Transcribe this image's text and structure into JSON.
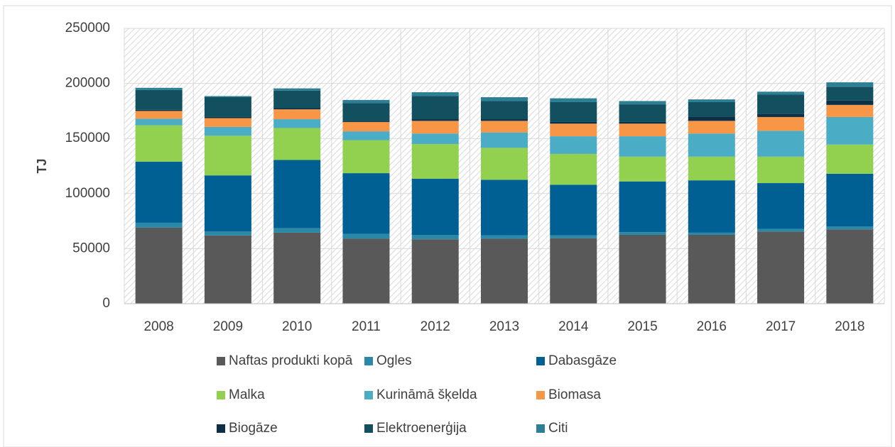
{
  "chart_data": {
    "type": "stacked_bar",
    "ylabel": "TJ",
    "categories": [
      "2008",
      "2009",
      "2010",
      "2011",
      "2012",
      "2013",
      "2014",
      "2015",
      "2016",
      "2017",
      "2018"
    ],
    "ylim": [
      0,
      250000
    ],
    "yticks": [
      0,
      50000,
      100000,
      150000,
      200000,
      250000
    ],
    "grid": true,
    "legend": "bottom",
    "series": [
      {
        "name": "Naftas produkti kopā",
        "color": "#595959",
        "values": [
          69000,
          62000,
          64500,
          59000,
          58500,
          59000,
          59500,
          62500,
          62500,
          65500,
          67500
        ]
      },
      {
        "name": "Ogles",
        "color": "#2b88a6",
        "values": [
          4500,
          3500,
          4000,
          4500,
          4000,
          3000,
          2500,
          2500,
          2000,
          2500,
          2500
        ]
      },
      {
        "name": "Dabasgāze",
        "color": "#005f93",
        "values": [
          55500,
          51000,
          62000,
          55000,
          51000,
          50500,
          46000,
          46000,
          47500,
          41500,
          48000
        ]
      },
      {
        "name": "Malka",
        "color": "#92d050",
        "values": [
          33000,
          36000,
          29000,
          30000,
          31500,
          29000,
          28000,
          22500,
          21500,
          24000,
          26500
        ]
      },
      {
        "name": "Kurināmā šķelda",
        "color": "#4bacc6",
        "values": [
          6000,
          8000,
          8000,
          8000,
          9500,
          14000,
          16000,
          18500,
          21000,
          23500,
          25000
        ]
      },
      {
        "name": "Biomasa",
        "color": "#f79646",
        "values": [
          7000,
          8000,
          9000,
          8500,
          11500,
          10500,
          11500,
          11500,
          11500,
          12500,
          11000
        ]
      },
      {
        "name": "Biogāze",
        "color": "#0b2f47",
        "values": [
          1000,
          1000,
          1000,
          1000,
          1500,
          1500,
          1500,
          1500,
          4000,
          3000,
          4000
        ]
      },
      {
        "name": "Elektroenerģija",
        "color": "#13505f",
        "values": [
          18000,
          18000,
          16000,
          16000,
          21000,
          16500,
          18000,
          16000,
          13000,
          17500,
          12500
        ]
      },
      {
        "name": "Citi",
        "color": "#2c7f94",
        "values": [
          2000,
          1000,
          2000,
          3000,
          3500,
          3500,
          3500,
          3000,
          2500,
          2500,
          4000
        ]
      }
    ]
  }
}
